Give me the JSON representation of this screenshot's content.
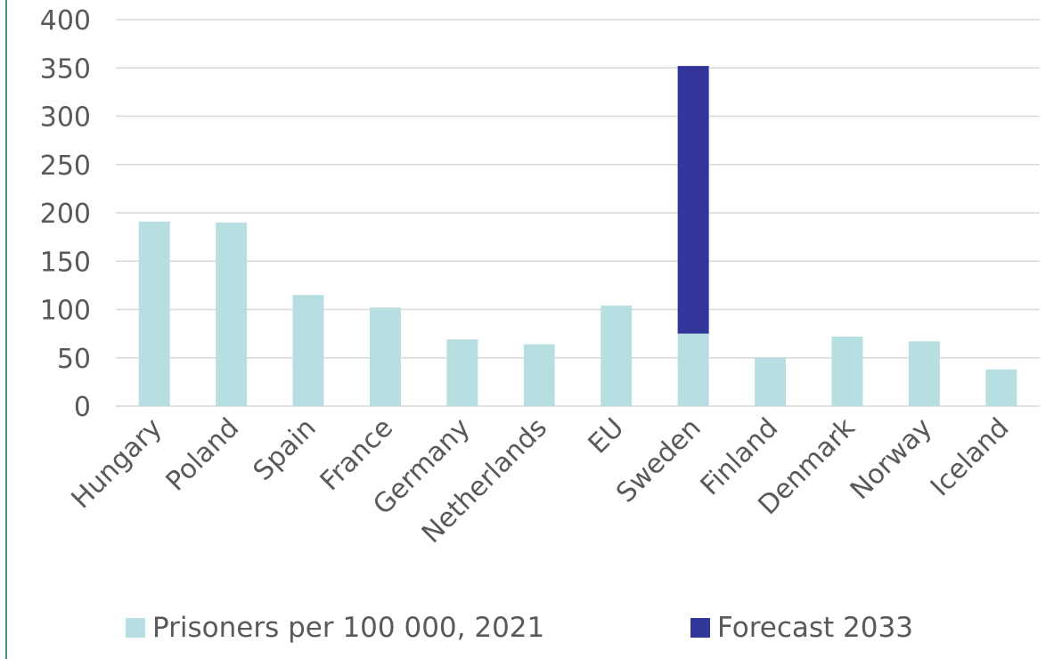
{
  "colors": {
    "prisoners": "#b7dfe2",
    "forecast": "#32369b",
    "grid": "#d9d9d9",
    "text": "#595959",
    "frame": "#3f8f87"
  },
  "legend": {
    "prisoners_label": "Prisoners per 100 000, 2021",
    "forecast_label": "Forecast 2033"
  },
  "chart_data": {
    "type": "bar",
    "stacked": true,
    "categories": [
      "Hungary",
      "Poland",
      "Spain",
      "France",
      "Germany",
      "Netherlands",
      "EU",
      "Sweden",
      "Finland",
      "Denmark",
      "Norway",
      "Iceland"
    ],
    "series": [
      {
        "name": "Prisoners per 100 000, 2021",
        "color": "#b7dfe2",
        "values": [
          191,
          190,
          115,
          102,
          69,
          64,
          104,
          75,
          50,
          72,
          67,
          38
        ]
      },
      {
        "name": "Forecast 2033",
        "color": "#32369b",
        "values": [
          0,
          0,
          0,
          0,
          0,
          0,
          0,
          277,
          0,
          0,
          0,
          0
        ]
      }
    ],
    "yticks": [
      0,
      50,
      100,
      150,
      200,
      250,
      300,
      350,
      400
    ],
    "ylim": [
      0,
      400
    ],
    "grid": true,
    "legend_position": "bottom"
  }
}
